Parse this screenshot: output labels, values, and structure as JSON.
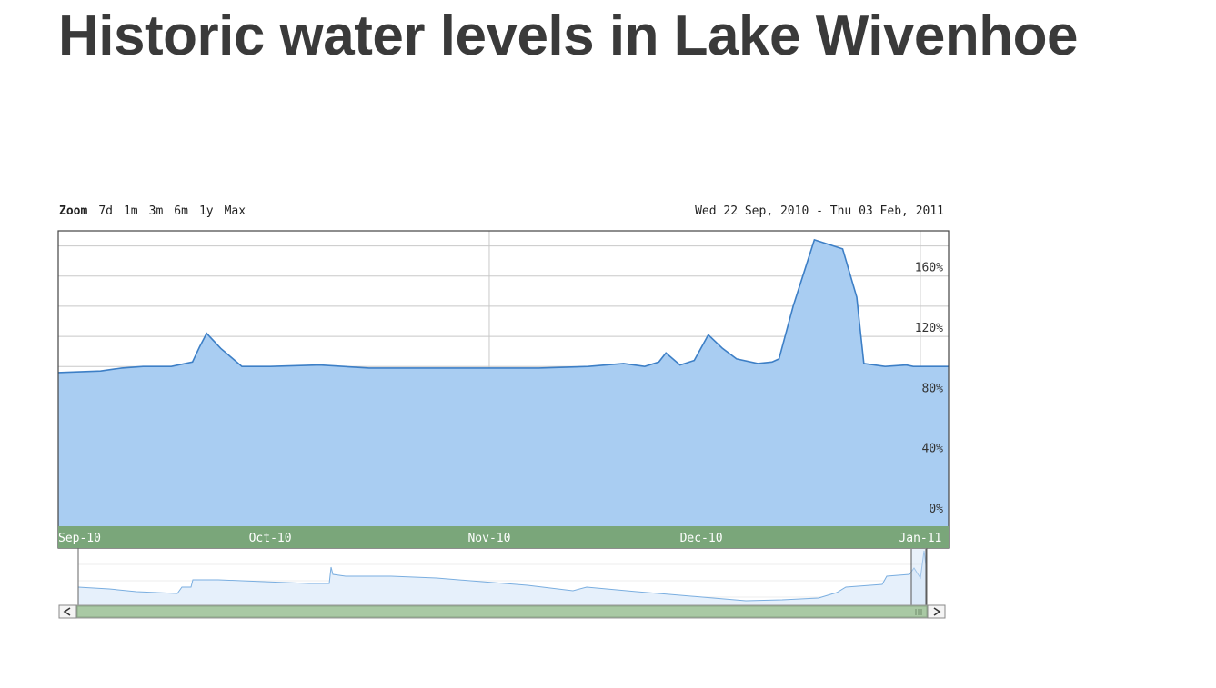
{
  "page": {
    "title": "Historic water levels in Lake Wivenhoe"
  },
  "zoom": {
    "label": "Zoom",
    "options": [
      "7d",
      "1m",
      "3m",
      "6m",
      "1y",
      "Max"
    ]
  },
  "date_range": "Wed 22 Sep, 2010 - Thu 03 Feb, 2011",
  "colors": {
    "area_fill": "#a9cdf2",
    "area_line": "#3d7fc6",
    "axis_band": "#7aa67a",
    "grid": "#c8c8c8",
    "navigator_fill": "#e6f0fb",
    "navigator_line": "#7aaee0",
    "scrollbar": "#a9c9a4"
  },
  "chart_data": {
    "type": "area",
    "x_axis_type": "date",
    "xlim": [
      "2010-09-01",
      "2011-01-05"
    ],
    "ylim": [
      -6,
      190
    ],
    "x_ticks": [
      {
        "date": "2010-09-01",
        "label": "Sep-10"
      },
      {
        "date": "2010-10-01",
        "label": "Oct-10"
      },
      {
        "date": "2010-11-01",
        "label": "Nov-10"
      },
      {
        "date": "2010-12-01",
        "label": "Dec-10"
      },
      {
        "date": "2011-01-01",
        "label": "Jan-11"
      }
    ],
    "y_ticks": [
      0,
      40,
      80,
      120,
      160
    ],
    "y_tick_suffix": "%",
    "grid": true,
    "series": [
      {
        "x": [
          "2010-09-01",
          "2010-09-07",
          "2010-09-10",
          "2010-09-13",
          "2010-09-17",
          "2010-09-20",
          "2010-09-21",
          "2010-09-22",
          "2010-09-24",
          "2010-09-27",
          "2010-10-01",
          "2010-10-08",
          "2010-10-15",
          "2010-10-22",
          "2010-11-01",
          "2010-11-08",
          "2010-11-15",
          "2010-11-20",
          "2010-11-23",
          "2010-11-25",
          "2010-11-26",
          "2010-11-28",
          "2010-11-30",
          "2010-12-02",
          "2010-12-04",
          "2010-12-06",
          "2010-12-09",
          "2010-12-11",
          "2010-12-12",
          "2010-12-14",
          "2010-12-17",
          "2010-12-21",
          "2010-12-23",
          "2010-12-24",
          "2010-12-27",
          "2010-12-30",
          "2010-12-31",
          "2011-01-05"
        ],
        "y": [
          96,
          97,
          99,
          100,
          100,
          103,
          113,
          122,
          112,
          100,
          100,
          101,
          99,
          99,
          99,
          99,
          100,
          102,
          100,
          103,
          109,
          101,
          104,
          121,
          112,
          105,
          102,
          103,
          105,
          140,
          184,
          178,
          146,
          102,
          100,
          101,
          100,
          100
        ]
      }
    ]
  }
}
